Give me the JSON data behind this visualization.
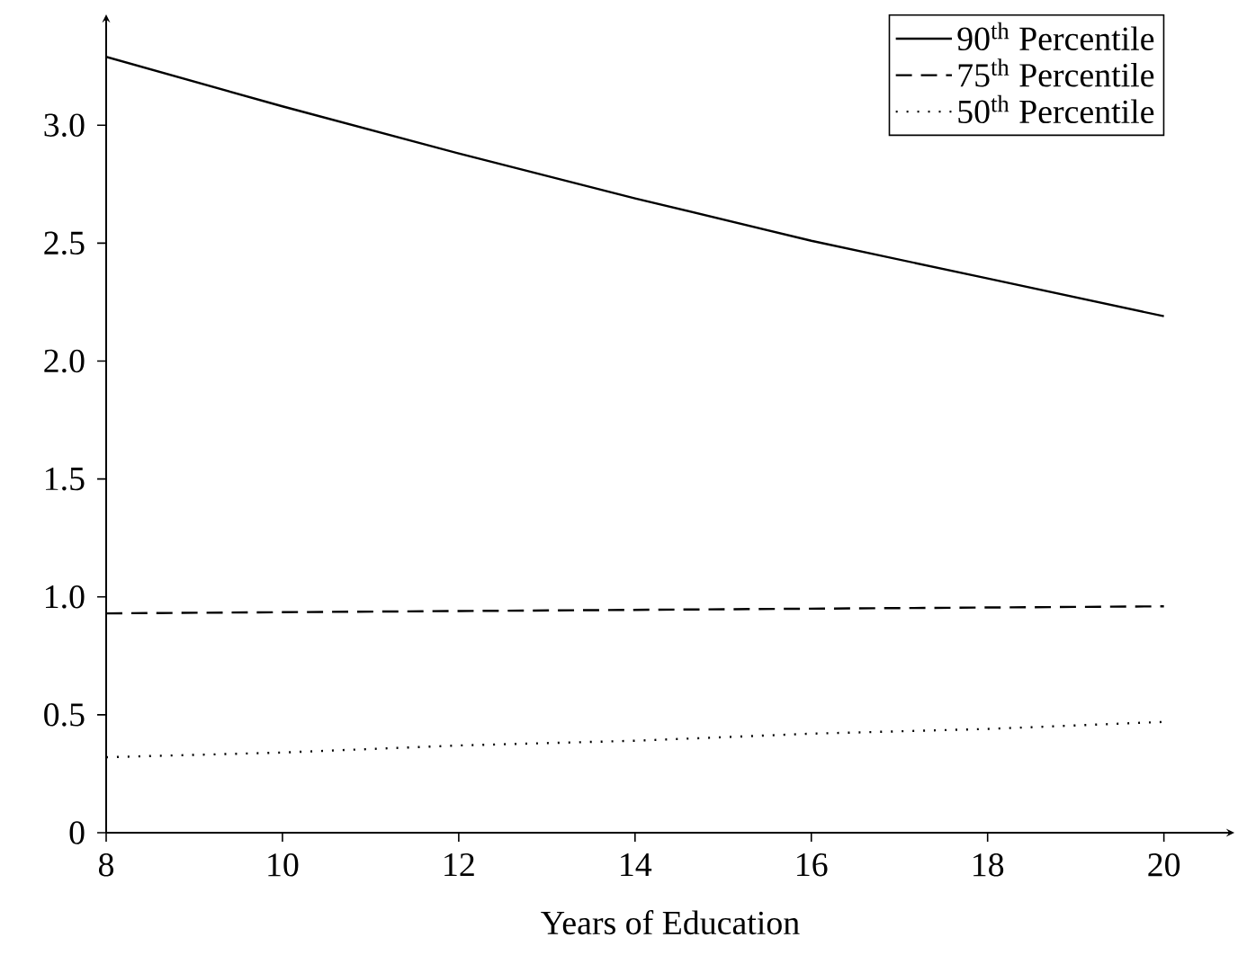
{
  "chart_data": {
    "type": "line",
    "xlabel": "Years of Education",
    "x": [
      8,
      10,
      12,
      14,
      16,
      18,
      20
    ],
    "series": [
      {
        "name": "90$^{th}$ Percentile",
        "color": "#000000",
        "line_style": "solid",
        "values": [
          3.29,
          3.08,
          2.88,
          2.69,
          2.51,
          2.35,
          2.19
        ]
      },
      {
        "name": "75$^{th}$ Percentile",
        "color": "#000000",
        "line_style": "dashed",
        "values": [
          0.93,
          0.935,
          0.94,
          0.945,
          0.95,
          0.955,
          0.96
        ]
      },
      {
        "name": "50$^{th}$ Percentile",
        "color": "#000000",
        "line_style": "dotted",
        "values": [
          0.32,
          0.34,
          0.37,
          0.39,
          0.42,
          0.44,
          0.47
        ]
      }
    ],
    "xlim": [
      8,
      20.8
    ],
    "ylim": [
      0,
      3.47
    ],
    "xticks": [
      8,
      10,
      12,
      14,
      16,
      18,
      20
    ],
    "yticks": [
      0,
      0.5,
      {
        "value": 1,
        "label": "1.0"
      },
      1.5,
      {
        "value": 2,
        "label": "2.0"
      },
      2.5,
      {
        "value": 3,
        "label": "3.0"
      }
    ],
    "legend": "top right",
    "grid": false,
    "marker": "none"
  }
}
